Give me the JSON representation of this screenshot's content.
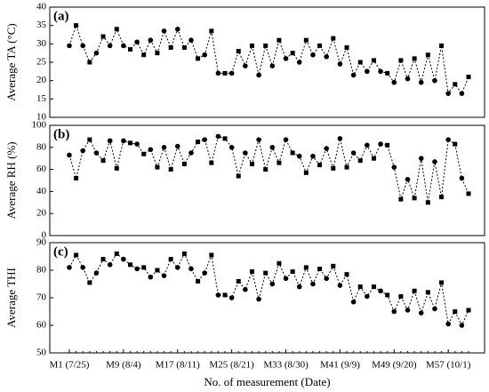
{
  "chart_data": [
    {
      "type": "line",
      "title": "(a)",
      "y_label": "Average TA (°C)",
      "color": "#000000",
      "ylim": [
        10,
        40
      ],
      "yticks": [
        10,
        15,
        20,
        25,
        30,
        35,
        40
      ],
      "values": [
        29.5,
        35,
        29.5,
        25,
        27.5,
        32,
        29.5,
        34,
        29.5,
        28.5,
        30.5,
        27,
        31,
        27.5,
        33.5,
        29,
        34,
        29,
        31,
        26,
        27,
        33.5,
        22,
        22,
        22,
        28,
        24,
        29.5,
        21.5,
        29.5,
        24,
        31,
        26,
        27.5,
        25,
        31,
        27,
        29.5,
        26.5,
        31.5,
        24.5,
        29,
        21.5,
        25,
        22.5,
        25.5,
        22.5,
        22,
        19.5,
        25.5,
        20.5,
        26,
        19.5,
        27,
        20,
        29.5,
        16.5,
        19,
        16.5,
        21
      ]
    },
    {
      "type": "line",
      "title": "(b)",
      "y_label": "Average RH (%)",
      "color": "#000000",
      "ylim": [
        0,
        100
      ],
      "yticks": [
        0,
        20,
        40,
        60,
        80,
        100
      ],
      "values": [
        73,
        52,
        77,
        87,
        75,
        68,
        86,
        61,
        86,
        84,
        83,
        74,
        78,
        62,
        80,
        60,
        81,
        65,
        75,
        85,
        87,
        66,
        90,
        88,
        80,
        54,
        75,
        65,
        87,
        60,
        80,
        66,
        87,
        75,
        72,
        57,
        72,
        64,
        79,
        61,
        88,
        62,
        75,
        68,
        82,
        70,
        83,
        82,
        62,
        33,
        51,
        34,
        70,
        30,
        67,
        35,
        87,
        83,
        52,
        38
      ]
    },
    {
      "type": "line",
      "title": "(c)",
      "y_label": "Average THI",
      "x_label": "No. of measurement (Date)",
      "color": "#000000",
      "ylim": [
        50,
        90
      ],
      "yticks": [
        50,
        60,
        70,
        80,
        90
      ],
      "categories": [
        "M1 (7/25)",
        null,
        null,
        null,
        null,
        null,
        null,
        null,
        "M9 (8/4)",
        null,
        null,
        null,
        null,
        null,
        null,
        null,
        "M17 (8/11)",
        null,
        null,
        null,
        null,
        null,
        null,
        null,
        "M25 (8/21)",
        null,
        null,
        null,
        null,
        null,
        null,
        null,
        "M33 (8/30)",
        null,
        null,
        null,
        null,
        null,
        null,
        null,
        "M41 (9/9)",
        null,
        null,
        null,
        null,
        null,
        null,
        null,
        "M49 (9/20)",
        null,
        null,
        null,
        null,
        null,
        null,
        null,
        "M57 (10/1)",
        null,
        null,
        null
      ],
      "values": [
        81,
        85.5,
        81,
        75.5,
        79,
        84,
        82,
        86,
        84,
        82,
        80.5,
        81,
        77.5,
        80,
        78,
        84,
        81,
        86,
        80.5,
        76,
        79,
        85.5,
        71,
        71,
        70,
        76,
        73,
        79.5,
        69.5,
        79,
        75,
        82.5,
        77,
        79.5,
        74,
        81,
        75,
        80.5,
        77,
        81.5,
        74.5,
        78.5,
        68.5,
        74,
        70.5,
        74,
        72.5,
        71,
        65,
        70.5,
        65.5,
        72.5,
        64.5,
        72,
        66,
        75.5,
        60.5,
        65,
        60,
        65.5
      ]
    }
  ]
}
